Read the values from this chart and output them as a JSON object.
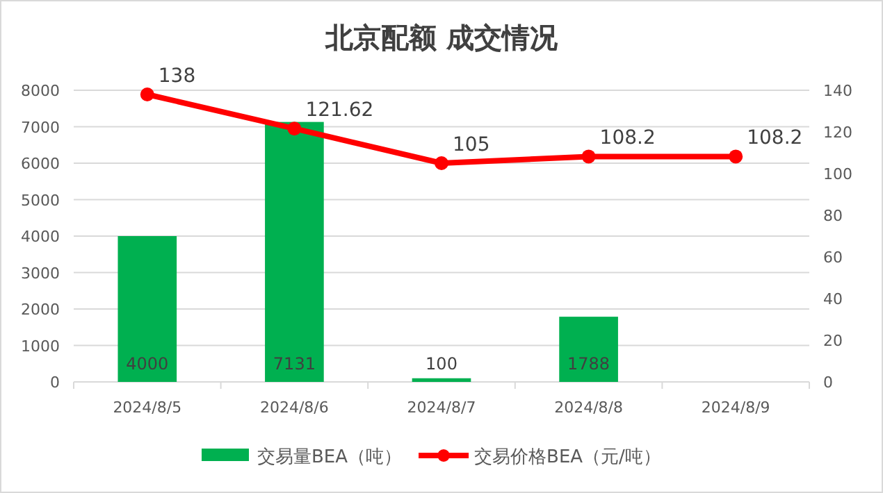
{
  "chart_data": {
    "type": "bar",
    "title": "北京配额 成交情况",
    "categories": [
      "2024/8/5",
      "2024/8/6",
      "2024/8/7",
      "2024/8/8",
      "2024/8/9"
    ],
    "series": [
      {
        "name": "交易量BEA（吨）",
        "color": "#00b050",
        "values": [
          4000,
          7131,
          100,
          1788,
          null
        ]
      },
      {
        "name": "交易价格BEA（元/吨）",
        "type": "line",
        "axis": "y2",
        "color": "#ff0000",
        "values": [
          138,
          121.62,
          105,
          108.2,
          108.2
        ]
      }
    ],
    "ylim": [
      0,
      8000
    ],
    "yticks": [
      0,
      1000,
      2000,
      3000,
      4000,
      5000,
      6000,
      7000,
      8000
    ],
    "y2lim": [
      0,
      140
    ],
    "y2ticks": [
      0,
      20,
      40,
      60,
      80,
      100,
      120,
      140
    ],
    "grid": "y",
    "legend": "bottom",
    "marker": "circle",
    "data_labels": true
  }
}
